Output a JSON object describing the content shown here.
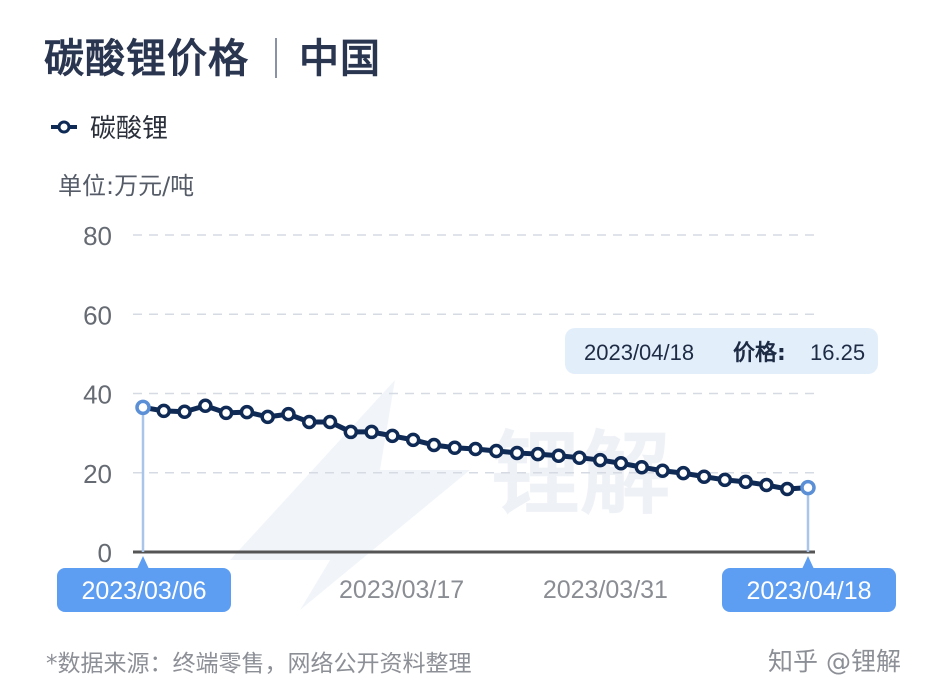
{
  "title": {
    "main": "碳酸锂价格",
    "region": "中国"
  },
  "legend": {
    "label": "碳酸锂",
    "color": "#0f2a55"
  },
  "unit": "单位:万元/吨",
  "tooltip": {
    "date": "2023/04/18",
    "label": "价格:",
    "value": "16.25"
  },
  "footer": "*数据来源：终端零售，网络公开资料整理",
  "brand": "知乎 @锂解",
  "watermark": "锂解",
  "chart_data": {
    "type": "line",
    "title": "碳酸锂价格 | 中国",
    "ylabel": "单位:万元/吨",
    "ylim": [
      0,
      80
    ],
    "yticks": [
      0,
      20,
      40,
      60,
      80
    ],
    "xticks": [
      "2023/03/06",
      "2023/03/17",
      "2023/03/31",
      "2023/04/18"
    ],
    "highlighted_xticks": [
      "2023/03/06",
      "2023/04/18"
    ],
    "grid": true,
    "legend_position": "top-left",
    "series": [
      {
        "name": "碳酸锂",
        "color": "#0f2a55",
        "values": [
          36.5,
          35.6,
          35.4,
          36.9,
          35.1,
          35.3,
          34.1,
          34.8,
          32.8,
          32.8,
          30.3,
          30.3,
          29.3,
          28.3,
          27.0,
          26.3,
          26.0,
          25.5,
          25.0,
          24.7,
          24.3,
          23.8,
          23.2,
          22.4,
          21.4,
          20.5,
          19.9,
          19.0,
          18.2,
          17.7,
          16.9,
          15.9,
          16.25
        ]
      }
    ]
  }
}
